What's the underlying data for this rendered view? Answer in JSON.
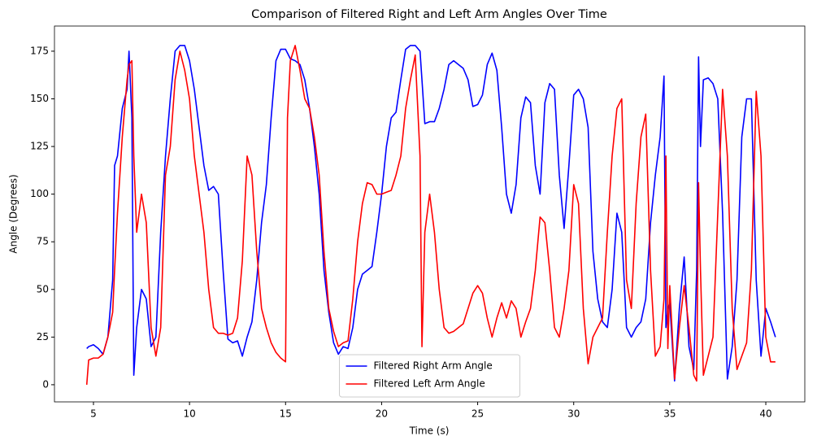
{
  "chart_data": {
    "type": "line",
    "title": "Comparison of Filtered Right and Left Arm Angles Over Time",
    "x_label": "Time (s)",
    "y_label": "Angle (Degrees)",
    "x": [
      4.65,
      4.75,
      5,
      5.25,
      5.5,
      5.75,
      6,
      6.1,
      6.25,
      6.5,
      6.75,
      6.85,
      7,
      7.1,
      7.25,
      7.5,
      7.75,
      8,
      8.25,
      8.5,
      8.75,
      9,
      9.25,
      9.5,
      9.75,
      10,
      10.25,
      10.5,
      10.75,
      11,
      11.25,
      11.5,
      11.75,
      12,
      12.25,
      12.5,
      12.75,
      13,
      13.25,
      13.5,
      13.75,
      14,
      14.25,
      14.5,
      14.75,
      15,
      15.1,
      15.25,
      15.5,
      15.75,
      16,
      16.25,
      16.5,
      16.75,
      17,
      17.25,
      17.5,
      17.75,
      18,
      18.25,
      18.5,
      18.75,
      19,
      19.25,
      19.5,
      19.75,
      20,
      20.25,
      20.5,
      20.75,
      21,
      21.25,
      21.5,
      21.75,
      22,
      22.1,
      22.25,
      22.5,
      22.75,
      23,
      23.25,
      23.5,
      23.75,
      24,
      24.25,
      24.5,
      24.75,
      25,
      25.25,
      25.5,
      25.75,
      26,
      26.25,
      26.5,
      26.75,
      27,
      27.25,
      27.5,
      27.75,
      28,
      28.25,
      28.5,
      28.75,
      29,
      29.25,
      29.5,
      29.75,
      30,
      30.25,
      30.5,
      30.75,
      31,
      31.25,
      31.5,
      31.75,
      32,
      32.25,
      32.5,
      32.75,
      33,
      33.25,
      33.5,
      33.75,
      34,
      34.25,
      34.5,
      34.7,
      34.8,
      34.9,
      35,
      35.25,
      35.5,
      35.75,
      36,
      36.25,
      36.4,
      36.5,
      36.6,
      36.75,
      37,
      37.25,
      37.5,
      37.75,
      38,
      38.25,
      38.5,
      38.75,
      39,
      39.25,
      39.5,
      39.75,
      40,
      40.25,
      40.5
    ],
    "series": [
      {
        "name": "Filtered Right Arm Angle",
        "color": "#0000ff",
        "values": [
          19,
          20,
          21,
          19,
          16,
          25,
          55,
          115,
          120,
          145,
          155,
          175,
          140,
          5,
          30,
          50,
          45,
          20,
          25,
          80,
          120,
          150,
          175,
          178,
          178,
          170,
          155,
          135,
          115,
          102,
          104,
          100,
          60,
          24,
          22,
          23,
          15,
          25,
          33,
          55,
          85,
          105,
          140,
          170,
          176,
          176,
          174,
          171,
          170,
          168,
          160,
          145,
          125,
          100,
          60,
          38,
          22,
          16,
          20,
          19,
          30,
          50,
          58,
          60,
          62,
          80,
          100,
          125,
          140,
          143,
          160,
          176,
          178,
          178,
          175,
          160,
          137,
          138,
          138,
          145,
          155,
          168,
          170,
          168,
          166,
          160,
          146,
          147,
          152,
          168,
          174,
          165,
          135,
          100,
          90,
          105,
          140,
          151,
          148,
          115,
          100,
          148,
          158,
          155,
          110,
          82,
          115,
          152,
          155,
          150,
          135,
          70,
          45,
          33,
          30,
          50,
          90,
          80,
          30,
          25,
          30,
          33,
          45,
          85,
          110,
          130,
          162,
          30,
          40,
          43,
          2,
          40,
          67,
          20,
          8,
          60,
          172,
          125,
          160,
          161,
          158,
          150,
          90,
          3,
          20,
          55,
          130,
          150,
          150,
          55,
          15,
          40,
          33,
          25
        ]
      },
      {
        "name": "Filtered Left Arm Angle",
        "color": "#ff0000",
        "values": [
          0,
          13,
          14,
          14,
          16,
          25,
          38,
          60,
          90,
          130,
          160,
          168,
          170,
          120,
          80,
          100,
          85,
          30,
          15,
          30,
          110,
          125,
          160,
          175,
          165,
          150,
          120,
          100,
          80,
          50,
          30,
          27,
          27,
          26,
          27,
          35,
          65,
          120,
          110,
          70,
          40,
          30,
          22,
          17,
          14,
          12,
          140,
          170,
          178,
          165,
          150,
          145,
          130,
          110,
          70,
          40,
          28,
          20,
          22,
          23,
          45,
          75,
          95,
          106,
          105,
          100,
          100,
          101,
          102,
          110,
          120,
          145,
          160,
          173,
          120,
          20,
          80,
          100,
          80,
          50,
          30,
          27,
          28,
          30,
          32,
          40,
          48,
          52,
          48,
          35,
          25,
          35,
          43,
          35,
          44,
          40,
          25,
          33,
          40,
          60,
          88,
          85,
          60,
          30,
          25,
          40,
          60,
          105,
          95,
          40,
          11,
          25,
          30,
          35,
          80,
          120,
          145,
          150,
          55,
          40,
          95,
          130,
          142,
          60,
          15,
          20,
          45,
          120,
          19,
          52,
          3,
          30,
          52,
          30,
          5,
          2,
          106,
          60,
          5,
          15,
          25,
          90,
          155,
          120,
          40,
          8,
          15,
          22,
          60,
          154,
          120,
          25,
          12,
          12
        ]
      }
    ],
    "xlim": [
      2.97,
      42.03
    ],
    "xticks": [
      5,
      10,
      15,
      20,
      25,
      30,
      35,
      40
    ],
    "ylim": [
      -9,
      188.2
    ],
    "yticks": [
      0,
      25,
      50,
      75,
      100,
      125,
      150,
      175
    ],
    "grid": false,
    "legend": "lower center"
  }
}
